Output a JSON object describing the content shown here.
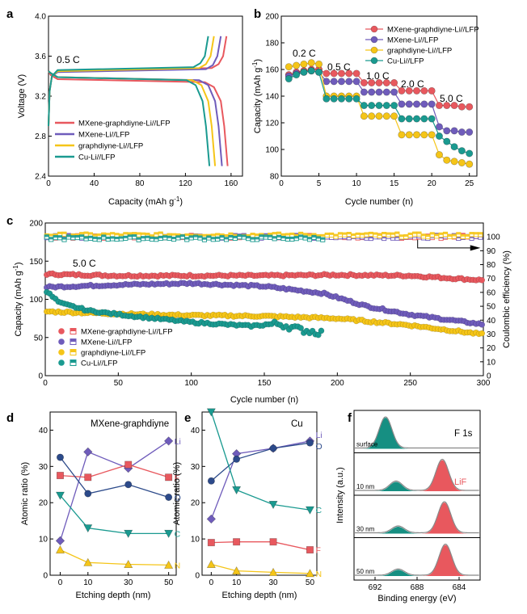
{
  "colors": {
    "mxgd": "#e8585e",
    "mx": "#6f5cbb",
    "gd": "#f5c518",
    "cu": "#1a9a90",
    "darkblue": "#2c4a8a",
    "xps_fill_green": "#168f82",
    "xps_fill_red": "#e8585e"
  },
  "panel_labels": {
    "a": "a",
    "b": "b",
    "c": "c",
    "d": "d",
    "e": "e",
    "f": "f"
  },
  "chart_data": [
    {
      "id": "a",
      "type": "line",
      "xlabel": "Capacity (mAh g",
      "xlabel_sup": "-1",
      "ylabel": "Voltage (V)",
      "xlim": [
        0,
        170
      ],
      "ylim": [
        2.4,
        4.0
      ],
      "xticks": [
        0,
        40,
        80,
        120,
        160
      ],
      "yticks": [
        2.4,
        2.8,
        3.2,
        3.6,
        4.0
      ],
      "annotation": "0.5 C",
      "legend": [
        "MXene-graphdiyne-Li//LFP",
        "MXene-Li//LFP",
        "graphdiyne-Li//LFP",
        "Cu-Li//LFP"
      ],
      "series": [
        {
          "name": "MXene-graphdiyne-Li//LFP",
          "color_key": "mxgd",
          "charge_plateau": 3.46,
          "discharge_plateau": 3.37,
          "capacity": 157
        },
        {
          "name": "MXene-Li//LFP",
          "color_key": "mx",
          "charge_plateau": 3.45,
          "discharge_plateau": 3.39,
          "capacity": 152
        },
        {
          "name": "graphdiyne-Li//LFP",
          "color_key": "gd",
          "charge_plateau": 3.46,
          "discharge_plateau": 3.39,
          "capacity": 146
        },
        {
          "name": "Cu-Li//LFP",
          "color_key": "cu",
          "charge_plateau": 3.47,
          "discharge_plateau": 3.39,
          "capacity": 141
        }
      ]
    },
    {
      "id": "b",
      "type": "line",
      "xlabel": "Cycle number (n)",
      "ylabel": "Capacity (mAh g",
      "ylabel_sup": "-1",
      "xlim": [
        0,
        26
      ],
      "ylim": [
        80,
        200
      ],
      "xticks": [
        0,
        5,
        10,
        15,
        20,
        25
      ],
      "yticks": [
        80,
        100,
        120,
        140,
        160,
        180,
        200
      ],
      "rate_labels": [
        "0.2 C",
        "0.5 C",
        "1.0 C",
        "2.0 C",
        "5.0 C"
      ],
      "legend": [
        "MXene-graphdiyne-Li//LFP",
        "MXene-Li//LFP",
        "graphdiyne-Li//LFP",
        "Cu-Li//LFP"
      ],
      "series": [
        {
          "name": "MXene-graphdiyne-Li//LFP",
          "color_key": "mxgd",
          "values": [
            156,
            158,
            159,
            160,
            160,
            157,
            157,
            157,
            157,
            157,
            150,
            150,
            150,
            150,
            150,
            144,
            144,
            144,
            144,
            144,
            133,
            133,
            133,
            132,
            132
          ]
        },
        {
          "name": "MXene-Li//LFP",
          "color_key": "mx",
          "values": [
            155,
            157,
            158,
            159,
            158,
            151,
            151,
            151,
            151,
            151,
            143,
            143,
            143,
            143,
            143,
            134,
            134,
            134,
            134,
            134,
            117,
            114,
            114,
            113,
            113
          ]
        },
        {
          "name": "graphdiyne-Li//LFP",
          "color_key": "gd",
          "values": [
            162,
            163,
            164,
            165,
            164,
            140,
            140,
            140,
            140,
            140,
            125,
            125,
            125,
            125,
            125,
            111,
            111,
            111,
            111,
            111,
            96,
            92,
            91,
            90,
            89
          ]
        },
        {
          "name": "Cu-Li//LFP",
          "color_key": "cu",
          "values": [
            153,
            156,
            158,
            159,
            158,
            138,
            138,
            138,
            138,
            138,
            133,
            133,
            133,
            133,
            133,
            123,
            123,
            123,
            123,
            123,
            110,
            106,
            102,
            99,
            97
          ]
        }
      ]
    },
    {
      "id": "c",
      "type": "scatter",
      "xlabel": "Cycle number (n)",
      "ylabel": "Capacity (mAh g",
      "ylabel_sup": "-1",
      "y2label": "Coulombic efficiency (%)",
      "annotation": "5.0 C",
      "xlim": [
        0,
        300
      ],
      "ylim": [
        0,
        200
      ],
      "y2lim": [
        0,
        110
      ],
      "xticks": [
        0,
        50,
        100,
        150,
        200,
        250,
        300
      ],
      "yticks": [
        0,
        50,
        100,
        150,
        200
      ],
      "y2ticks": [
        0,
        10,
        20,
        30,
        40,
        50,
        60,
        70,
        80,
        90,
        100
      ],
      "legend": [
        "MXene-graphdiyne-Li//LFP",
        "MXene-Li//LFP",
        "graphdiyne-Li//LFP",
        "Cu-Li//LFP"
      ],
      "series": [
        {
          "name": "MXene-graphdiyne-Li//LFP",
          "color_key": "mxgd",
          "capacity_pts": [
            [
              1,
              133
            ],
            [
              50,
              131
            ],
            [
              100,
              131
            ],
            [
              150,
              131
            ],
            [
              200,
              132
            ],
            [
              250,
              131
            ],
            [
              300,
              125
            ]
          ],
          "ce": 100,
          "last_cycle": 300
        },
        {
          "name": "MXene-Li//LFP",
          "color_key": "mx",
          "capacity_pts": [
            [
              1,
              116
            ],
            [
              50,
              119
            ],
            [
              100,
              121
            ],
            [
              150,
              117
            ],
            [
              190,
              108
            ],
            [
              220,
              91
            ],
            [
              250,
              80
            ],
            [
              300,
              67
            ]
          ],
          "ce": 100,
          "last_cycle": 300
        },
        {
          "name": "graphdiyne-Li//LFP",
          "color_key": "gd",
          "capacity_pts": [
            [
              1,
              84
            ],
            [
              50,
              81
            ],
            [
              100,
              79
            ],
            [
              150,
              78
            ],
            [
              200,
              75
            ],
            [
              250,
              66
            ],
            [
              300,
              54
            ]
          ],
          "ce": 101,
          "last_cycle": 300
        },
        {
          "name": "Cu-Li//LFP",
          "color_key": "cu",
          "capacity_pts": [
            [
              1,
              110
            ],
            [
              10,
              95
            ],
            [
              30,
              85
            ],
            [
              60,
              78
            ],
            [
              100,
              70
            ],
            [
              140,
              65
            ],
            [
              160,
              68
            ],
            [
              175,
              60
            ],
            [
              190,
              56
            ]
          ],
          "ce": 99,
          "last_cycle": 190
        }
      ]
    },
    {
      "id": "d",
      "type": "line",
      "title": "MXene-graphdiyne",
      "xlabel": "Etching depth (nm)",
      "ylabel": "Atomic ratio (%)",
      "x_categories": [
        "0",
        "10",
        "30",
        "50"
      ],
      "ylim": [
        0,
        45
      ],
      "yticks": [
        0,
        10,
        20,
        30,
        40
      ],
      "series": [
        {
          "name": "Li",
          "color_key": "mx",
          "marker": "diamond",
          "values": [
            9.5,
            34,
            29.5,
            37
          ]
        },
        {
          "name": "F",
          "color_key": "mxgd",
          "marker": "square",
          "values": [
            27.5,
            27,
            30.5,
            27
          ]
        },
        {
          "name": "O",
          "color_key": "darkblue",
          "marker": "circle",
          "values": [
            32.5,
            22.5,
            25,
            21.5
          ]
        },
        {
          "name": "C",
          "color_key": "cu",
          "marker": "tri-down",
          "values": [
            22,
            13,
            11.5,
            11.5
          ]
        },
        {
          "name": "N",
          "color_key": "gd",
          "marker": "tri-up",
          "values": [
            7,
            3.5,
            3,
            2.8
          ]
        }
      ]
    },
    {
      "id": "e",
      "type": "line",
      "title": "Cu",
      "xlabel": "Etching depth (nm)",
      "ylabel": "Atomic ratio (%)",
      "x_categories": [
        "0",
        "10",
        "30",
        "50"
      ],
      "ylim": [
        0,
        45
      ],
      "yticks": [
        0,
        10,
        20,
        30,
        40
      ],
      "series": [
        {
          "name": "Li",
          "color_key": "mx",
          "marker": "diamond",
          "values": [
            15.5,
            33.5,
            35,
            37
          ]
        },
        {
          "name": "O",
          "color_key": "darkblue",
          "marker": "circle",
          "values": [
            26,
            32,
            35,
            36.5
          ]
        },
        {
          "name": "C",
          "color_key": "cu",
          "marker": "tri-down",
          "values": [
            45,
            23.5,
            19.5,
            18
          ]
        },
        {
          "name": "F",
          "color_key": "mxgd",
          "marker": "square",
          "values": [
            9,
            9.2,
            9.2,
            7
          ]
        },
        {
          "name": "N",
          "color_key": "gd",
          "marker": "tri-up",
          "values": [
            3,
            1.2,
            0.8,
            0.5
          ]
        }
      ]
    },
    {
      "id": "f",
      "type": "area",
      "title": "F 1s",
      "xlabel": "Binding energy (eV)",
      "ylabel": "Intensity (a.u.)",
      "xlim": [
        694,
        682
      ],
      "xticks": [
        692,
        688,
        684
      ],
      "peak_label": "LiF",
      "panels": [
        {
          "label": "surface",
          "peaks": [
            {
              "center": 691.0,
              "height": 1.0,
              "fill_key": "xps_fill_green"
            }
          ]
        },
        {
          "label": "10 nm",
          "peaks": [
            {
              "center": 690.0,
              "height": 0.3,
              "fill_key": "xps_fill_green"
            },
            {
              "center": 685.6,
              "height": 1.0,
              "fill_key": "xps_fill_red"
            }
          ]
        },
        {
          "label": "30 nm",
          "peaks": [
            {
              "center": 689.8,
              "height": 0.22,
              "fill_key": "xps_fill_green"
            },
            {
              "center": 685.4,
              "height": 1.0,
              "fill_key": "xps_fill_red"
            }
          ]
        },
        {
          "label": "50 nm",
          "peaks": [
            {
              "center": 689.8,
              "height": 0.2,
              "fill_key": "xps_fill_green"
            },
            {
              "center": 685.3,
              "height": 1.0,
              "fill_key": "xps_fill_red"
            }
          ]
        }
      ]
    }
  ]
}
